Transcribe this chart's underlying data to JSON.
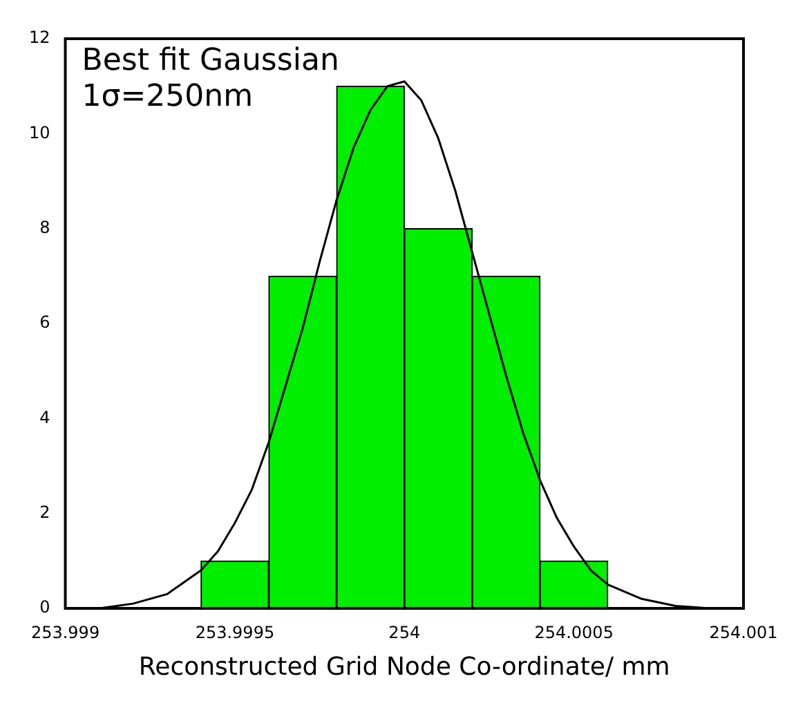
{
  "chart_data": {
    "type": "histogram",
    "xlabel": "Reconstructed Grid Node Co-ordinate/ mm",
    "annotations": [
      "Best fit Gaussian",
      "1σ=250nm"
    ],
    "bins": [
      253.9994,
      253.9996,
      253.9998,
      254.0,
      254.0002,
      254.0004,
      254.0006
    ],
    "values": [
      1,
      7,
      11,
      8,
      7,
      1
    ],
    "color": "#00ee00",
    "series": [
      {
        "type": "line",
        "color": "#000000",
        "x": [
          253.999,
          253.9991,
          253.9992,
          253.9993,
          253.9994,
          253.99945,
          253.9995,
          253.99955,
          253.9996,
          253.99965,
          253.9997,
          253.99975,
          253.9998,
          253.99985,
          253.9999,
          253.99995,
          254.0,
          254.00005,
          254.0001,
          254.00015,
          254.0002,
          254.00025,
          254.0003,
          254.00035,
          254.0004,
          254.00045,
          254.0005,
          254.00055,
          254.0006,
          254.0007,
          254.0008,
          254.0009,
          254.001
        ],
        "values": [
          0,
          0,
          0.1,
          0.3,
          0.8,
          1.2,
          1.8,
          2.5,
          3.5,
          4.7,
          5.9,
          7.3,
          8.6,
          9.7,
          10.5,
          11.0,
          11.1,
          10.7,
          9.9,
          8.8,
          7.5,
          6.2,
          4.9,
          3.7,
          2.7,
          1.9,
          1.3,
          0.8,
          0.5,
          0.2,
          0.05,
          0,
          0
        ]
      }
    ],
    "xlim": [
      253.999,
      254.001
    ],
    "xticks": [
      253.999,
      253.9995,
      254,
      254.0005,
      254.001
    ],
    "ylim": [
      0,
      12
    ],
    "yticks": [
      0,
      2,
      4,
      6,
      8,
      10,
      12
    ],
    "grid": false,
    "legend": false
  }
}
